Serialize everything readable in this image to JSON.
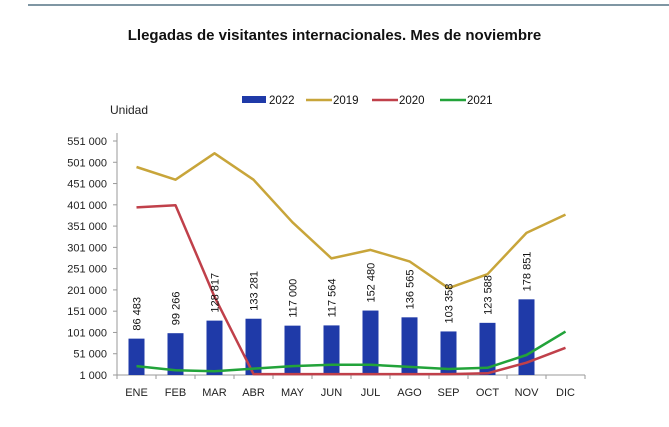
{
  "chart_data": {
    "type": "bar",
    "title": "Llegadas de visitantes internacionales. Mes de noviembre",
    "ylabel": "Unidad",
    "xlabel": "",
    "categories": [
      "ENE",
      "FEB",
      "MAR",
      "ABR",
      "MAY",
      "JUN",
      "JUL",
      "AGO",
      "SEP",
      "OCT",
      "NOV",
      "DIC"
    ],
    "yticks": [
      1000,
      51000,
      101000,
      151000,
      201000,
      251000,
      301000,
      351000,
      401000,
      451000,
      501000,
      551000
    ],
    "ytick_labels": [
      "1 000",
      "51 000",
      "101 000",
      "151 000",
      "201 000",
      "251 000",
      "301 000",
      "351 000",
      "401 000",
      "451 000",
      "501 000",
      "551 000"
    ],
    "ylim": [
      1000,
      551000
    ],
    "grid": false,
    "legend_position": "top",
    "series": [
      {
        "name": "2022",
        "type": "bar",
        "color": "#1f3aa8",
        "values": [
          86483,
          99266,
          128817,
          133281,
          117000,
          117564,
          152480,
          136565,
          103358,
          123588,
          178851,
          null
        ],
        "labels": [
          "86 483",
          "99 266",
          "128 817",
          "133 281",
          "117 000",
          "117 564",
          "152 480",
          "136 565",
          "103 358",
          "123 588",
          "178 851",
          ""
        ]
      },
      {
        "name": "2019",
        "type": "line",
        "color": "#c8a53a",
        "values": [
          490000,
          460000,
          522000,
          460000,
          360000,
          275000,
          295000,
          268000,
          205000,
          238000,
          335000,
          378000
        ]
      },
      {
        "name": "2020",
        "type": "line",
        "color": "#c0404a",
        "values": [
          395000,
          400000,
          185000,
          3000,
          3000,
          3000,
          3000,
          3000,
          3000,
          5000,
          30000,
          65000
        ]
      },
      {
        "name": "2021",
        "type": "line",
        "color": "#22a33a",
        "values": [
          22000,
          12000,
          10000,
          16000,
          22000,
          25000,
          25000,
          20000,
          15000,
          18000,
          48000,
          103000
        ]
      }
    ]
  }
}
